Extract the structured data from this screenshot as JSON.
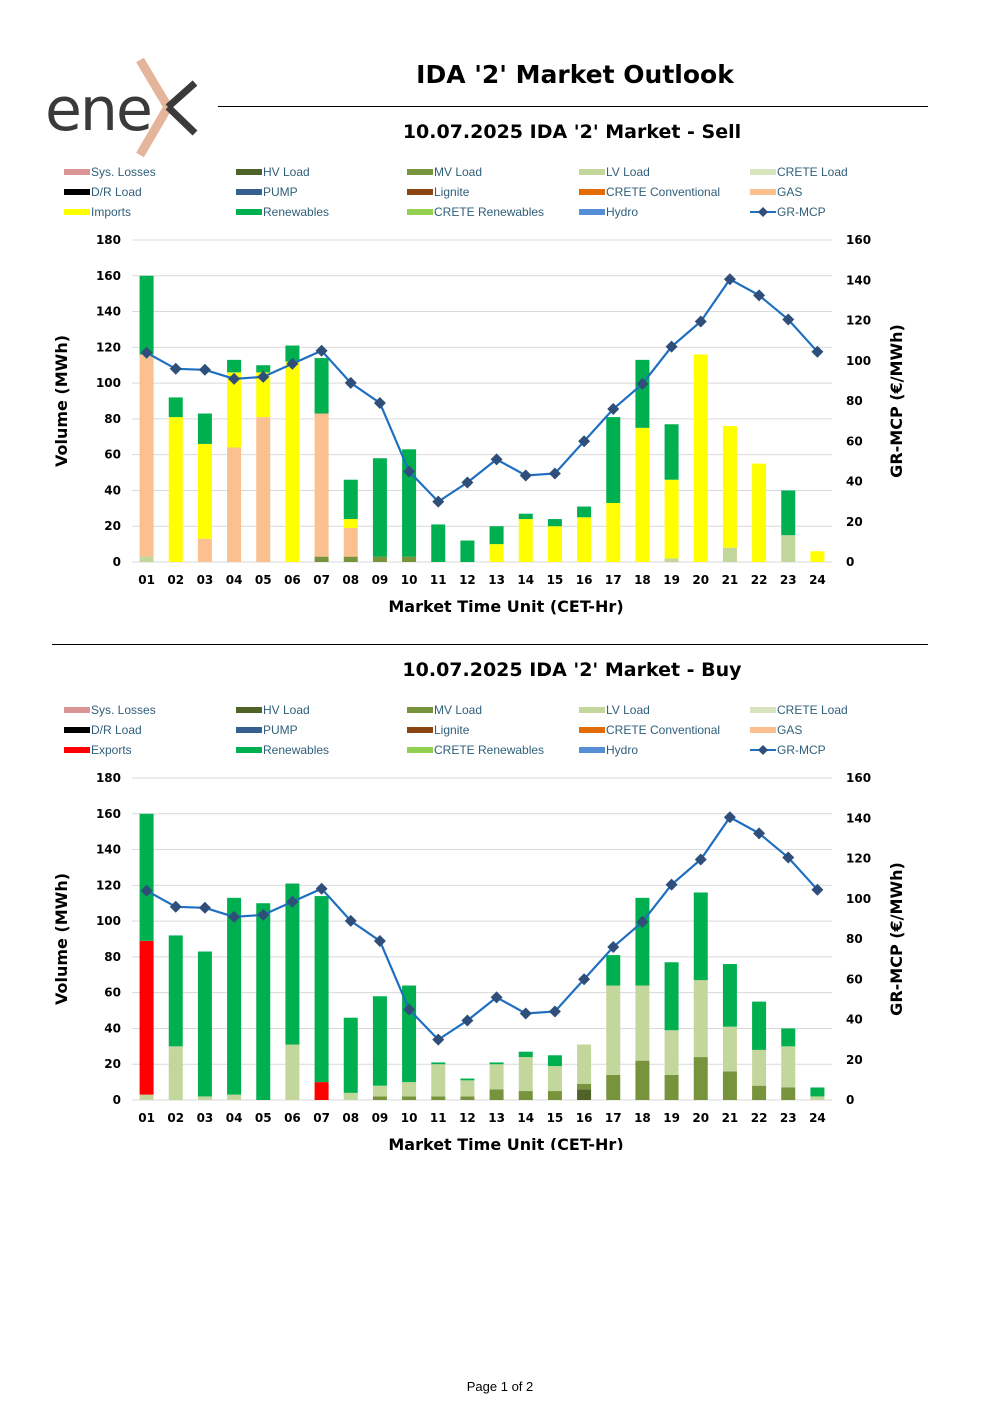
{
  "header": {
    "title": "IDA '2' Market Outlook",
    "logo_text": "ene"
  },
  "footer": {
    "page_label": "Page 1 of 2"
  },
  "colors": {
    "sys_losses": "#d99694",
    "hv_load": "#4f6228",
    "mv_load": "#77933c",
    "lv_load": "#c3d69b",
    "crete_load": "#d7e4bd",
    "dr_load": "#000000",
    "pump": "#376092",
    "lignite": "#8b4513",
    "crete_conv": "#e36c09",
    "gas": "#fac090",
    "imports": "#ffff00",
    "exports": "#ff0000",
    "renewables": "#00b050",
    "crete_ren": "#92d050",
    "hydro": "#558ed5",
    "mcp_line": "#1f6fc1",
    "mcp_marker": "#2f4f7a",
    "legend_text": "#2f5f7a",
    "grid": "#d9d9d9"
  },
  "chart_data": [
    {
      "type": "bar",
      "stacked": true,
      "title": "10.07.2025  IDA '2' Market - Sell",
      "xlabel": "Market Time Unit (CET-Hr)",
      "ylabel": "Volume (MWh)",
      "y2label": "GR-MCP (€/MWh)",
      "ylim": [
        0,
        180
      ],
      "y2lim": [
        0,
        160
      ],
      "yticks": [
        "0",
        "20",
        "40",
        "60",
        "80",
        "100",
        "120",
        "140",
        "160",
        "180"
      ],
      "y2ticks": [
        "0",
        "20",
        "40",
        "60",
        "80",
        "100",
        "120",
        "140",
        "160"
      ],
      "categories": [
        "01",
        "02",
        "03",
        "04",
        "05",
        "06",
        "07",
        "08",
        "09",
        "10",
        "11",
        "12",
        "13",
        "14",
        "15",
        "16",
        "17",
        "18",
        "19",
        "20",
        "21",
        "22",
        "23",
        "24"
      ],
      "legend": [
        {
          "label": "Sys. Losses",
          "color_key": "sys_losses"
        },
        {
          "label": "HV Load",
          "color_key": "hv_load"
        },
        {
          "label": "MV Load",
          "color_key": "mv_load"
        },
        {
          "label": "LV Load",
          "color_key": "lv_load"
        },
        {
          "label": "CRETE Load",
          "color_key": "crete_load"
        },
        {
          "label": "D/R Load",
          "color_key": "dr_load"
        },
        {
          "label": "PUMP",
          "color_key": "pump"
        },
        {
          "label": "Lignite",
          "color_key": "lignite"
        },
        {
          "label": "CRETE Conventional",
          "color_key": "crete_conv"
        },
        {
          "label": "GAS",
          "color_key": "gas"
        },
        {
          "label": "Imports",
          "color_key": "imports"
        },
        {
          "label": "Renewables",
          "color_key": "renewables"
        },
        {
          "label": "CRETE Renewables",
          "color_key": "crete_ren"
        },
        {
          "label": "Hydro",
          "color_key": "hydro"
        },
        {
          "label": "GR-MCP",
          "color_key": "mcp_line",
          "line": true
        }
      ],
      "series": [
        {
          "name": "HV Load",
          "color_key": "hv_load",
          "values": [
            0,
            0,
            0,
            0,
            0,
            0,
            0,
            0,
            0,
            0,
            0,
            0,
            0,
            0,
            0,
            0,
            0,
            0,
            0,
            0,
            0,
            0,
            0,
            0
          ]
        },
        {
          "name": "MV Load",
          "color_key": "mv_load",
          "values": [
            0,
            0,
            0,
            0,
            0,
            0,
            3,
            3,
            3,
            3,
            0,
            0,
            0,
            0,
            0,
            0,
            0,
            0,
            0,
            0,
            0,
            0,
            0,
            0
          ]
        },
        {
          "name": "LV Load",
          "color_key": "lv_load",
          "values": [
            3,
            0,
            0,
            0,
            0,
            0,
            0,
            0,
            0,
            0,
            0,
            0,
            0,
            0,
            0,
            0,
            0,
            0,
            2,
            0,
            8,
            0,
            15,
            0
          ]
        },
        {
          "name": "GAS",
          "color_key": "gas",
          "values": [
            113,
            0,
            13,
            64,
            81,
            0,
            80,
            16,
            0,
            0,
            0,
            0,
            0,
            0,
            0,
            0,
            0,
            0,
            0,
            0,
            0,
            0,
            0,
            0
          ]
        },
        {
          "name": "Imports",
          "color_key": "imports",
          "values": [
            0,
            81,
            53,
            42,
            25,
            112,
            0,
            5,
            0,
            0,
            0,
            0,
            10,
            24,
            20,
            25,
            33,
            75,
            44,
            116,
            68,
            55,
            0,
            6
          ]
        },
        {
          "name": "Renewables",
          "color_key": "renewables",
          "values": [
            44,
            11,
            17,
            7,
            4,
            9,
            31,
            22,
            55,
            60,
            21,
            12,
            10,
            3,
            4,
            6,
            48,
            38,
            31,
            0,
            0,
            0,
            25,
            0
          ]
        }
      ],
      "mcp": {
        "name": "GR-MCP",
        "values": [
          104,
          96,
          95.5,
          91,
          92,
          98.5,
          105,
          89,
          79,
          45,
          30,
          39.5,
          51,
          43,
          44,
          60,
          76,
          88.5,
          107,
          119.5,
          140.5,
          132.5,
          120.5,
          104.5
        ]
      }
    },
    {
      "type": "bar",
      "stacked": true,
      "title": "10.07.2025  IDA '2' Market - Buy",
      "xlabel": "Market Time Unit (CET-Hr)",
      "ylabel": "Volume (MWh)",
      "y2label": "GR-MCP (€/MWh)",
      "ylim": [
        0,
        180
      ],
      "y2lim": [
        0,
        160
      ],
      "yticks": [
        "0",
        "20",
        "40",
        "60",
        "80",
        "100",
        "120",
        "140",
        "160",
        "180"
      ],
      "y2ticks": [
        "0",
        "20",
        "40",
        "60",
        "80",
        "100",
        "120",
        "140",
        "160"
      ],
      "categories": [
        "01",
        "02",
        "03",
        "04",
        "05",
        "06",
        "07",
        "08",
        "09",
        "10",
        "11",
        "12",
        "13",
        "14",
        "15",
        "16",
        "17",
        "18",
        "19",
        "20",
        "21",
        "22",
        "23",
        "24"
      ],
      "legend": [
        {
          "label": "Sys. Losses",
          "color_key": "sys_losses"
        },
        {
          "label": "HV Load",
          "color_key": "hv_load"
        },
        {
          "label": "MV Load",
          "color_key": "mv_load"
        },
        {
          "label": "LV Load",
          "color_key": "lv_load"
        },
        {
          "label": "CRETE Load",
          "color_key": "crete_load"
        },
        {
          "label": "D/R Load",
          "color_key": "dr_load"
        },
        {
          "label": "PUMP",
          "color_key": "pump"
        },
        {
          "label": "Lignite",
          "color_key": "lignite"
        },
        {
          "label": "CRETE Conventional",
          "color_key": "crete_conv"
        },
        {
          "label": "GAS",
          "color_key": "gas"
        },
        {
          "label": "Exports",
          "color_key": "exports"
        },
        {
          "label": "Renewables",
          "color_key": "renewables"
        },
        {
          "label": "CRETE Renewables",
          "color_key": "crete_ren"
        },
        {
          "label": "Hydro",
          "color_key": "hydro"
        },
        {
          "label": "GR-MCP",
          "color_key": "mcp_line",
          "line": true
        }
      ],
      "series": [
        {
          "name": "HV Load",
          "color_key": "hv_load",
          "values": [
            0,
            0,
            0,
            0,
            0,
            0,
            0,
            0,
            0,
            0,
            0,
            0,
            0,
            0,
            0,
            6,
            0,
            0,
            0,
            0,
            0,
            0,
            0,
            0
          ]
        },
        {
          "name": "MV Load",
          "color_key": "mv_load",
          "values": [
            0,
            0,
            0,
            0,
            0,
            0,
            0,
            0,
            2,
            2,
            2,
            2,
            6,
            5,
            5,
            3,
            14,
            22,
            14,
            24,
            16,
            8,
            7,
            0
          ]
        },
        {
          "name": "LV Load",
          "color_key": "lv_load",
          "values": [
            3,
            30,
            2,
            3,
            0,
            31,
            0,
            4,
            6,
            8,
            18,
            9,
            14,
            19,
            14,
            22,
            50,
            42,
            25,
            43,
            25,
            20,
            23,
            2
          ]
        },
        {
          "name": "Exports",
          "color_key": "exports",
          "values": [
            86,
            0,
            0,
            0,
            0,
            0,
            10,
            0,
            0,
            0,
            0,
            0,
            0,
            0,
            0,
            0,
            0,
            0,
            0,
            0,
            0,
            0,
            0,
            0
          ]
        },
        {
          "name": "Renewables",
          "color_key": "renewables",
          "values": [
            71,
            62,
            81,
            110,
            110,
            90,
            104,
            42,
            50,
            54,
            1,
            1,
            1,
            3,
            6,
            0,
            17,
            49,
            38,
            49,
            35,
            27,
            10,
            5
          ]
        }
      ],
      "mcp": {
        "name": "GR-MCP",
        "values": [
          104,
          96,
          95.5,
          91,
          92,
          98.5,
          105,
          89,
          79,
          45,
          30,
          39.5,
          51,
          43,
          44,
          60,
          76,
          88.5,
          107,
          119.5,
          140.5,
          132.5,
          120.5,
          104.5
        ]
      }
    }
  ]
}
